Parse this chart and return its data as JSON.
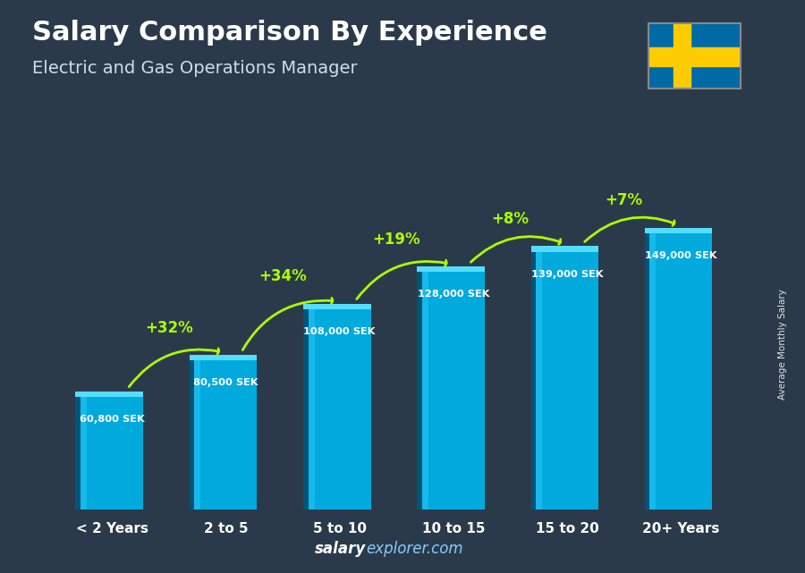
{
  "title_line1": "Salary Comparison By Experience",
  "title_line2": "Electric and Gas Operations Manager",
  "categories": [
    "< 2 Years",
    "2 to 5",
    "5 to 10",
    "10 to 15",
    "15 to 20",
    "20+ Years"
  ],
  "values": [
    60800,
    80500,
    108000,
    128000,
    139000,
    149000
  ],
  "labels": [
    "60,800 SEK",
    "80,500 SEK",
    "108,000 SEK",
    "128,000 SEK",
    "139,000 SEK",
    "149,000 SEK"
  ],
  "pct_changes": [
    "+32%",
    "+34%",
    "+19%",
    "+8%",
    "+7%"
  ],
  "bar_color_face": "#00aadd",
  "bar_color_side": "#005577",
  "bar_color_top": "#55ddff",
  "bar_color_highlight": "#33ccff",
  "background_color": "#2b3a4a",
  "pct_color": "#aaff00",
  "ylabel_text": "Average Monthly Salary",
  "footer_bold": "salary",
  "footer_normal": "explorer.com",
  "ylim": [
    0,
    185000
  ],
  "bar_width": 0.55
}
